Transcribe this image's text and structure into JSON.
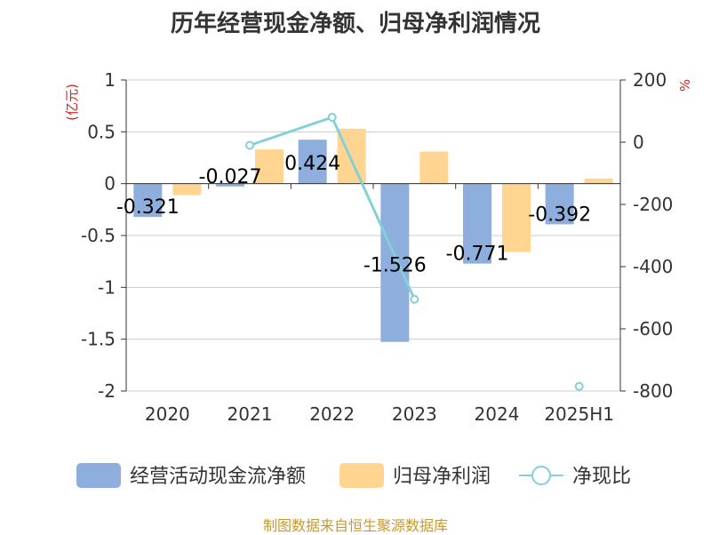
{
  "title": "历年经营现金净额、归母净利润情况",
  "source": "制图数据来自恒生聚源数据库",
  "colors": {
    "operating": "#8eaedd",
    "netprofit": "#ffd591",
    "ratio": "#84cfd8",
    "grid": "#cccccc",
    "axis": "#333333",
    "unit": "#e01f1f"
  },
  "chart_data": {
    "type": "bar",
    "title": "历年经营现金净额、归母净利润情况",
    "categories": [
      "2020",
      "2021",
      "2022",
      "2023",
      "2024",
      "2025H1"
    ],
    "left_axis": {
      "unit": "(亿元)",
      "ylim": [
        -2,
        1
      ],
      "ticks": [
        "1",
        "0.5",
        "0",
        "-0.5",
        "-1",
        "-1.5",
        "-2"
      ],
      "tick_values": [
        1,
        0.5,
        0,
        -0.5,
        -1,
        -1.5,
        -2
      ]
    },
    "right_axis": {
      "unit": "%",
      "ylim": [
        -800,
        200
      ],
      "ticks": [
        "200",
        "0",
        "-200",
        "-400",
        "-600",
        "-800"
      ],
      "tick_values": [
        200,
        0,
        -200,
        -400,
        -600,
        -800
      ]
    },
    "series": [
      {
        "name": "经营活动现金流净额",
        "type": "bar",
        "axis": "left",
        "values": [
          -0.321,
          -0.027,
          0.424,
          -1.526,
          -0.771,
          -0.392
        ],
        "labels": [
          "-0.321",
          "-0.027",
          "0.424",
          "-1.526",
          "-0.771",
          "-0.392"
        ]
      },
      {
        "name": "归母净利润",
        "type": "bar",
        "axis": "left",
        "values": [
          -0.11,
          0.33,
          0.53,
          0.31,
          -0.66,
          0.05
        ]
      },
      {
        "name": "净现比",
        "type": "line",
        "axis": "right",
        "values": [
          null,
          -10,
          80,
          -505,
          null,
          -785
        ]
      }
    ],
    "grid": true,
    "legend_position": "bottom"
  }
}
